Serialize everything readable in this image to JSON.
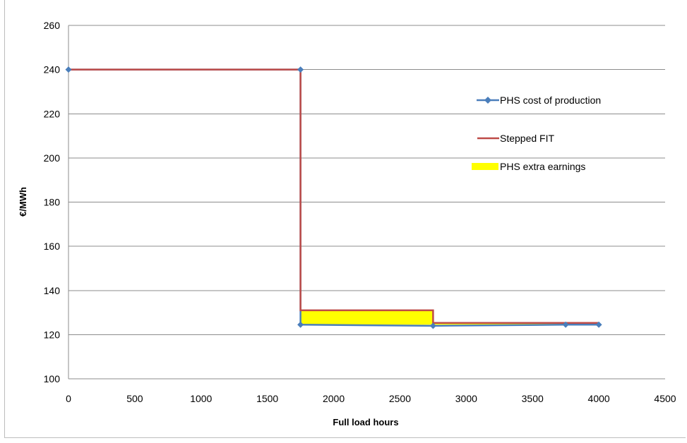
{
  "chart_data": {
    "type": "line",
    "xlabel": "Full load hours",
    "ylabel": "€/MWh",
    "xlim": [
      0,
      4500
    ],
    "ylim": [
      100,
      260
    ],
    "xticks": [
      0,
      500,
      1000,
      1500,
      2000,
      2500,
      3000,
      3500,
      4000,
      4500
    ],
    "yticks": [
      100,
      120,
      140,
      160,
      180,
      200,
      220,
      240,
      260
    ],
    "grid": "horizontal",
    "legend_position": "right",
    "series": [
      {
        "name": "PHS cost of production",
        "type": "line-markers",
        "color": "#4a7ebb",
        "x": [
          0,
          1750,
          1750,
          2750,
          3750,
          4000
        ],
        "y": [
          240,
          240,
          124.5,
          124,
          124.5,
          124.5
        ]
      },
      {
        "name": "Stepped FIT",
        "type": "step",
        "color": "#be4b48",
        "x": [
          0,
          1750,
          1750,
          2750,
          2750,
          4000
        ],
        "y": [
          240,
          240,
          131,
          131,
          125.3,
          125.3
        ]
      },
      {
        "name": "PHS extra earnings",
        "type": "area",
        "color": "#ffff00",
        "regions": [
          {
            "x": [
              1750,
              2750
            ],
            "y_low": 124.5,
            "y_high": 131
          },
          {
            "x": [
              2750,
              4000
            ],
            "y_low": 124.5,
            "y_high": 125.3
          }
        ]
      }
    ]
  }
}
